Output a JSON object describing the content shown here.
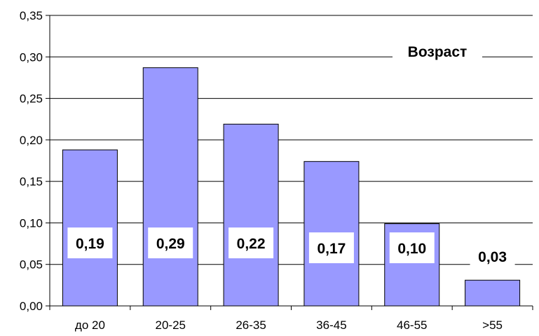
{
  "chart_data": {
    "type": "bar",
    "title": "Возраст",
    "categories": [
      "до 20",
      "20-25",
      "26-35",
      "36-45",
      "46-55",
      ">55"
    ],
    "values": [
      0.188,
      0.287,
      0.219,
      0.174,
      0.099,
      0.031
    ],
    "data_labels": [
      "0,19",
      "0,29",
      "0,22",
      "0,17",
      "0,10",
      "0,03"
    ],
    "y_ticks": [
      "0,00",
      "0,05",
      "0,10",
      "0,15",
      "0,20",
      "0,25",
      "0,30",
      "0,35"
    ],
    "ylim": [
      0,
      0.35
    ],
    "xlabel": "",
    "ylabel": "",
    "grid": true,
    "legend": "none",
    "bar_color": "#9999ff",
    "bar_border_color": "#000000"
  }
}
